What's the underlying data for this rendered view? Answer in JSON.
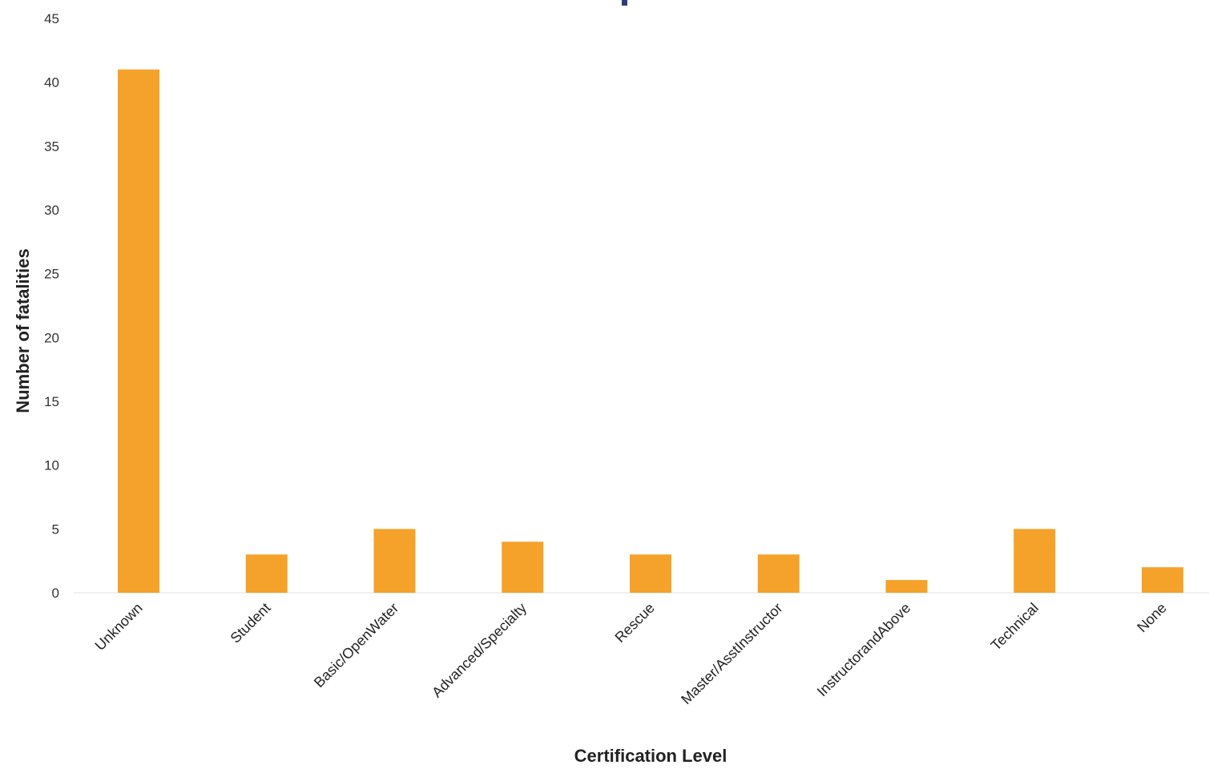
{
  "chart_data": {
    "type": "bar",
    "title": "",
    "xlabel": "Certification Level",
    "ylabel": "Number of fatalities",
    "categories": [
      "Unknown",
      "Student",
      "Basic/OpenWater",
      "Advanced/Specialty",
      "Rescue",
      "Master/AsstInstructor",
      "InstructorandAbove",
      "Technical",
      "None"
    ],
    "values": [
      41,
      3,
      5,
      4,
      3,
      3,
      1,
      5,
      2
    ],
    "ylim": [
      0,
      45
    ],
    "yticks": [
      0,
      5,
      10,
      15,
      20,
      25,
      30,
      35,
      40,
      45
    ],
    "grid": false,
    "legend": "none",
    "bar_color": "#f5a22a"
  }
}
